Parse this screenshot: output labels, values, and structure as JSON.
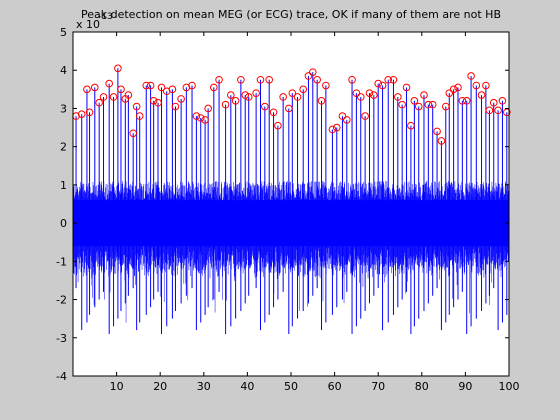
{
  "window": {
    "background_color": "#cccccc"
  },
  "chart_data": {
    "type": "line",
    "title": "Peak detection on mean MEG (or ECG) trace, OK if many of them are not HB",
    "xlabel": "",
    "ylabel": "",
    "y_exponent_label": "x 10",
    "y_exponent_power": "-13",
    "xlim": [
      0,
      100
    ],
    "ylim": [
      -4,
      5
    ],
    "x_ticks": [
      10,
      20,
      30,
      40,
      50,
      60,
      70,
      80,
      90,
      100
    ],
    "y_ticks": [
      -4,
      -3,
      -2,
      -1,
      0,
      1,
      2,
      3,
      4,
      5
    ],
    "grid": false,
    "legend": "none",
    "series": [
      {
        "role": "signal",
        "color": "#0000ff",
        "noise_band": [
          -1.1,
          1.1
        ],
        "dense_band": [
          -0.6,
          0.6
        ]
      },
      {
        "role": "detected-peaks",
        "marker": "circle",
        "color": "#ff0000",
        "x": [
          0.7,
          2.0,
          3.2,
          3.8,
          5.0,
          6.0,
          7.0,
          8.3,
          9.3,
          10.3,
          11.0,
          12.0,
          12.7,
          13.8,
          14.6,
          15.3,
          16.8,
          17.8,
          18.5,
          19.5,
          20.3,
          21.5,
          22.8,
          23.5,
          24.8,
          26.0,
          27.3,
          28.3,
          29.3,
          30.3,
          31.0,
          32.3,
          33.5,
          35.0,
          36.2,
          37.3,
          38.5,
          39.5,
          40.3,
          42.0,
          43.0,
          44.0,
          45.0,
          46.0,
          47.0,
          48.2,
          49.5,
          50.3,
          51.5,
          52.8,
          54.0,
          55.0,
          56.0,
          57.0,
          58.0,
          59.5,
          60.5,
          61.8,
          62.8,
          64.0,
          65.0,
          66.0,
          67.0,
          68.0,
          69.0,
          70.0,
          71.0,
          72.3,
          73.5,
          74.5,
          75.5,
          76.5,
          77.5,
          78.3,
          79.3,
          80.5,
          81.5,
          82.5,
          83.5,
          84.5,
          85.5,
          86.3,
          87.3,
          88.3,
          89.3,
          90.3,
          91.3,
          92.5,
          93.7,
          94.7,
          95.5,
          96.5,
          97.5,
          98.5,
          99.5
        ],
        "y": [
          2.8,
          2.85,
          3.5,
          2.9,
          3.55,
          3.15,
          3.3,
          3.65,
          3.3,
          4.05,
          3.5,
          3.25,
          3.35,
          2.35,
          3.05,
          2.8,
          3.6,
          3.6,
          3.2,
          3.15,
          3.55,
          3.45,
          3.5,
          3.05,
          3.25,
          3.55,
          3.6,
          2.8,
          2.75,
          2.7,
          3.0,
          3.55,
          3.75,
          3.1,
          3.35,
          3.2,
          3.75,
          3.35,
          3.3,
          3.4,
          3.75,
          3.05,
          3.75,
          2.9,
          2.55,
          3.3,
          3.0,
          3.4,
          3.3,
          3.5,
          3.85,
          3.95,
          3.75,
          3.2,
          3.6,
          2.45,
          2.5,
          2.8,
          2.7,
          3.75,
          3.4,
          3.3,
          2.8,
          3.4,
          3.35,
          3.65,
          3.6,
          3.75,
          3.75,
          3.3,
          3.1,
          3.55,
          2.55,
          3.2,
          3.05,
          3.35,
          3.1,
          3.1,
          2.4,
          2.15,
          3.05,
          3.4,
          3.5,
          3.55,
          3.2,
          3.2,
          3.85,
          3.6,
          3.35,
          3.6,
          2.95,
          3.15,
          2.95,
          3.2,
          2.9
        ]
      }
    ]
  }
}
